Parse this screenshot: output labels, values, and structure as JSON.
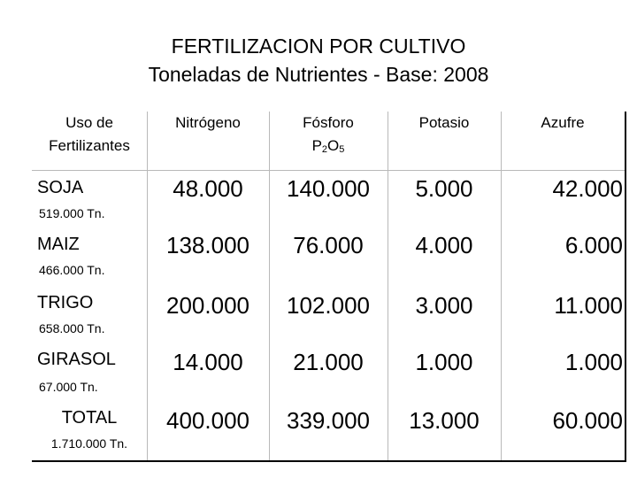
{
  "title": {
    "line1": "FERTILIZACION POR CULTIVO",
    "line2": "Toneladas de Nutrientes - Base: 2008"
  },
  "headers": {
    "col0_line1": "Uso de",
    "col0_line2": "Fertilizantes",
    "nitrogeno": "Nitrógeno",
    "fosforo": "Fósforo",
    "fosforo_formula_p": "P",
    "fosforo_formula_sub1": "2",
    "fosforo_formula_o": "O",
    "fosforo_formula_sub2": "5",
    "potasio": "Potasio",
    "azufre": "Azufre"
  },
  "rows": [
    {
      "crop": "SOJA",
      "tons": "519.000 Tn.",
      "nitrogeno": "48.000",
      "fosforo": "140.000",
      "potasio": "5.000",
      "azufre": "42.000"
    },
    {
      "crop": "MAIZ",
      "tons": "466.000 Tn.",
      "nitrogeno": "138.000",
      "fosforo": "76.000",
      "potasio": "4.000",
      "azufre": "6.000"
    },
    {
      "crop": "TRIGO",
      "tons": "658.000 Tn.",
      "nitrogeno": "200.000",
      "fosforo": "102.000",
      "potasio": "3.000",
      "azufre": "11.000"
    },
    {
      "crop": "GIRASOL",
      "tons": "67.000 Tn.",
      "nitrogeno": "14.000",
      "fosforo": "21.000",
      "potasio": "1.000",
      "azufre": "1.000"
    },
    {
      "crop": "TOTAL",
      "tons": "1.710.000 Tn.",
      "nitrogeno": "400.000",
      "fosforo": "339.000",
      "potasio": "13.000",
      "azufre": "60.000"
    }
  ]
}
